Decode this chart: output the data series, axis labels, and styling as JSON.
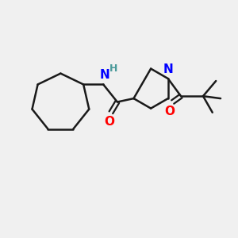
{
  "bg_color": "#f0f0f0",
  "bond_color": "#1a1a1a",
  "bond_width": 1.8,
  "N_color": "#0000ff",
  "O_color": "#ff0000",
  "NH_color": "#4a9a9a",
  "font_size": 10,
  "figsize": [
    3.0,
    3.0
  ],
  "dpi": 100,
  "xlim": [
    0,
    10
  ],
  "ylim": [
    0,
    10
  ]
}
